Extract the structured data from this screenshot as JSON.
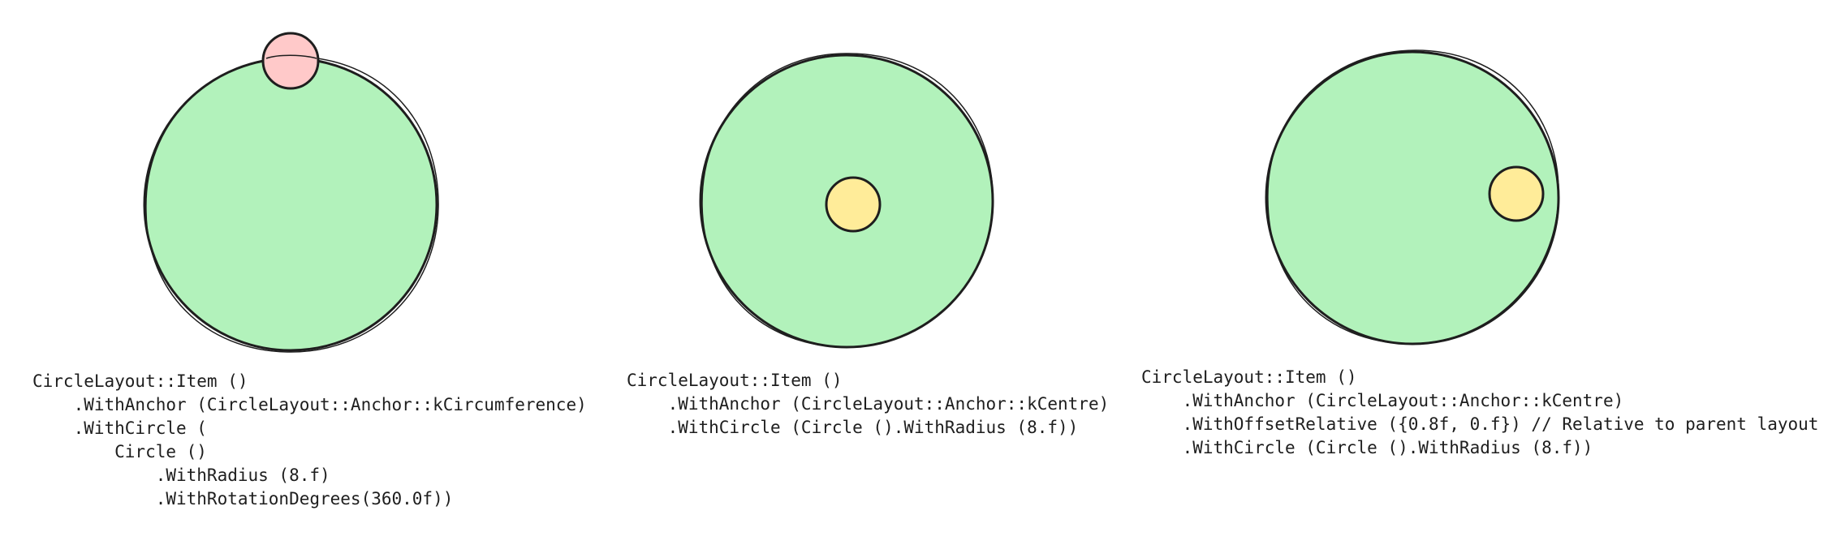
{
  "colors": {
    "large_circle_fill": "#b2f2bb",
    "anchor_circumference_fill": "#ffc9c9",
    "anchor_centre_fill": "#ffec99",
    "stroke": "#1e1e1e",
    "background": "#ffffff"
  },
  "examples": [
    {
      "anchor": "circumference",
      "code": [
        "CircleLayout::Item ()",
        "    .WithAnchor (CircleLayout::Anchor::kCircumference)",
        "    .WithCircle (",
        "        Circle ()",
        "            .WithRadius (8.f)",
        "            .WithRotationDegrees(360.0f))"
      ]
    },
    {
      "anchor": "centre",
      "code": [
        "CircleLayout::Item ()",
        "    .WithAnchor (CircleLayout::Anchor::kCentre)",
        "    .WithCircle (Circle ().WithRadius (8.f))"
      ]
    },
    {
      "anchor": "centre-offset",
      "code": [
        "CircleLayout::Item ()",
        "    .WithAnchor (CircleLayout::Anchor::kCentre)",
        "    .WithOffsetRelative ({0.8f, 0.f}) // Relative to parent layout",
        "    .WithCircle (Circle ().WithRadius (8.f))"
      ]
    }
  ]
}
